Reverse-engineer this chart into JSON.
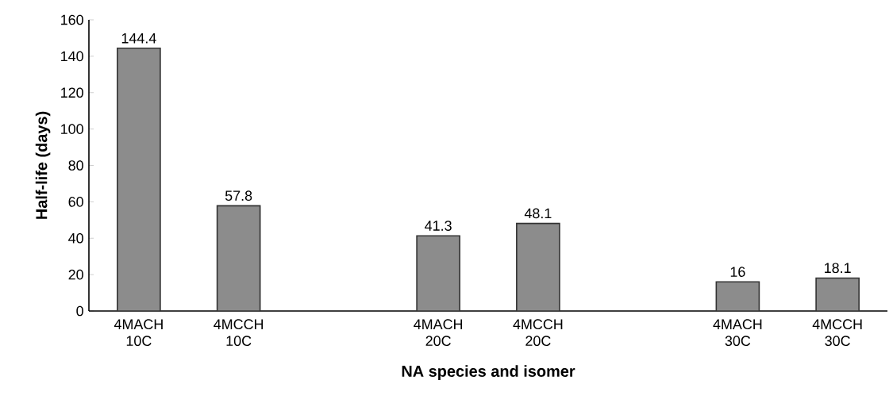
{
  "chart_data": {
    "type": "bar",
    "xlabel": "NA species and isomer",
    "ylabel": "Half-life (days)",
    "categories": [
      "4MACH 10C",
      "4MCCH 10C",
      null,
      "4MACH 20C",
      "4MCCH 20C",
      null,
      "4MACH 30C",
      "4MCCH 30C"
    ],
    "values": [
      144.4,
      57.8,
      null,
      41.3,
      48.1,
      null,
      16,
      18.1
    ],
    "value_labels": [
      "144.4",
      "57.8",
      null,
      "41.3",
      "48.1",
      null,
      "16",
      "18.1"
    ],
    "color": "#8c8c8c",
    "ylim": [
      0,
      160
    ],
    "yticks": [
      0,
      20,
      40,
      60,
      80,
      100,
      120,
      140,
      160
    ],
    "grid": false
  }
}
